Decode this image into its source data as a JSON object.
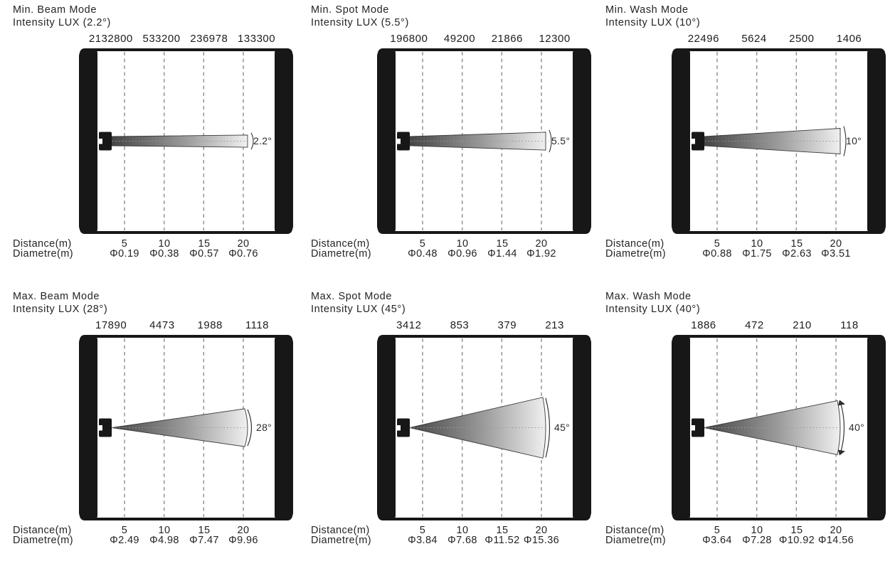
{
  "page": {
    "background": "#ffffff",
    "ink": "#1c1c1c"
  },
  "shared": {
    "distance_label": "Distance(m)",
    "diameter_label": "Diametre(m)",
    "distances": [
      "5",
      "10",
      "15",
      "20"
    ],
    "grid_color": "#8d8d8d",
    "beam_gradient_dark": "#454545",
    "beam_gradient_light": "#f0f0f0",
    "wall_color": "#171717"
  },
  "panels": [
    {
      "mode": "Min.",
      "title_line1": "Min. Beam Mode",
      "title_line2": "Intensity LUX (2.2°)",
      "beam_angle_label": "2.2°",
      "beam_angle_deg": 2.2,
      "lux_values": [
        "2132800",
        "533200",
        "236978",
        "133300"
      ],
      "diameters": [
        "Φ0.19",
        "Φ0.38",
        "Φ0.57",
        "Φ0.76"
      ]
    },
    {
      "mode": "Min.",
      "title_line1": "Min. Spot Mode",
      "title_line2": "Intensity LUX (5.5°)",
      "beam_angle_label": "5.5°",
      "beam_angle_deg": 5.5,
      "lux_values": [
        "196800",
        "49200",
        "21866",
        "12300"
      ],
      "diameters": [
        "Φ0.48",
        "Φ0.96",
        "Φ1.44",
        "Φ1.92"
      ]
    },
    {
      "mode": "Min.",
      "title_line1": "Min. Wash Mode",
      "title_line2": "Intensity LUX (10°)",
      "beam_angle_label": "10°",
      "beam_angle_deg": 10,
      "lux_values": [
        "22496",
        "5624",
        "2500",
        "1406"
      ],
      "diameters": [
        "Φ0.88",
        "Φ1.75",
        "Φ2.63",
        "Φ3.51"
      ]
    },
    {
      "mode": "Max.",
      "title_line1": "Max. Beam Mode",
      "title_line2": "Intensity LUX (28°)",
      "beam_angle_label": "28°",
      "beam_angle_deg": 28,
      "lux_values": [
        "17890",
        "4473",
        "1988",
        "1118"
      ],
      "diameters": [
        "Φ2.49",
        "Φ4.98",
        "Φ7.47",
        "Φ9.96"
      ]
    },
    {
      "mode": "Max.",
      "title_line1": "Max. Spot Mode",
      "title_line2": "Intensity LUX (45°)",
      "beam_angle_label": "45°",
      "beam_angle_deg": 45,
      "lux_values": [
        "3412",
        "853",
        "379",
        "213"
      ],
      "diameters": [
        "Φ3.84",
        "Φ7.68",
        "Φ11.52",
        "Φ15.36"
      ]
    },
    {
      "mode": "Max.",
      "title_line1": "Max. Wash Mode",
      "title_line2": "Intensity LUX (40°)",
      "beam_angle_label": "40°",
      "beam_angle_deg": 40,
      "lux_values": [
        "1886",
        "472",
        "210",
        "118"
      ],
      "diameters": [
        "Φ3.64",
        "Φ7.28",
        "Φ10.92",
        "Φ14.56"
      ]
    }
  ],
  "chart_data": [
    {
      "type": "table",
      "title": "Min. Beam Mode Intensity LUX (2.2°)",
      "xlabel": "Distance(m)",
      "x": [
        5,
        10,
        15,
        20
      ],
      "series": [
        {
          "name": "Intensity LUX",
          "values": [
            2132800,
            533200,
            236978,
            133300
          ]
        },
        {
          "name": "Diametre(m)",
          "values": [
            0.19,
            0.38,
            0.57,
            0.76
          ]
        }
      ]
    },
    {
      "type": "table",
      "title": "Min. Spot Mode Intensity LUX (5.5°)",
      "xlabel": "Distance(m)",
      "x": [
        5,
        10,
        15,
        20
      ],
      "series": [
        {
          "name": "Intensity LUX",
          "values": [
            196800,
            49200,
            21866,
            12300
          ]
        },
        {
          "name": "Diametre(m)",
          "values": [
            0.48,
            0.96,
            1.44,
            1.92
          ]
        }
      ]
    },
    {
      "type": "table",
      "title": "Min. Wash Mode Intensity LUX (10°)",
      "xlabel": "Distance(m)",
      "x": [
        5,
        10,
        15,
        20
      ],
      "series": [
        {
          "name": "Intensity LUX",
          "values": [
            22496,
            5624,
            2500,
            1406
          ]
        },
        {
          "name": "Diametre(m)",
          "values": [
            0.88,
            1.75,
            2.63,
            3.51
          ]
        }
      ]
    },
    {
      "type": "table",
      "title": "Max. Beam Mode Intensity LUX (28°)",
      "xlabel": "Distance(m)",
      "x": [
        5,
        10,
        15,
        20
      ],
      "series": [
        {
          "name": "Intensity LUX",
          "values": [
            17890,
            4473,
            1988,
            1118
          ]
        },
        {
          "name": "Diametre(m)",
          "values": [
            2.49,
            4.98,
            7.47,
            9.96
          ]
        }
      ]
    },
    {
      "type": "table",
      "title": "Max. Spot Mode Intensity LUX (45°)",
      "xlabel": "Distance(m)",
      "x": [
        5,
        10,
        15,
        20
      ],
      "series": [
        {
          "name": "Intensity LUX",
          "values": [
            3412,
            853,
            379,
            213
          ]
        },
        {
          "name": "Diametre(m)",
          "values": [
            3.84,
            7.68,
            11.52,
            15.36
          ]
        }
      ]
    },
    {
      "type": "table",
      "title": "Max. Wash Mode Intensity LUX (40°)",
      "xlabel": "Distance(m)",
      "x": [
        5,
        10,
        15,
        20
      ],
      "series": [
        {
          "name": "Intensity LUX",
          "values": [
            1886,
            472,
            210,
            118
          ]
        },
        {
          "name": "Diametre(m)",
          "values": [
            3.64,
            7.28,
            10.92,
            14.56
          ]
        }
      ]
    }
  ]
}
